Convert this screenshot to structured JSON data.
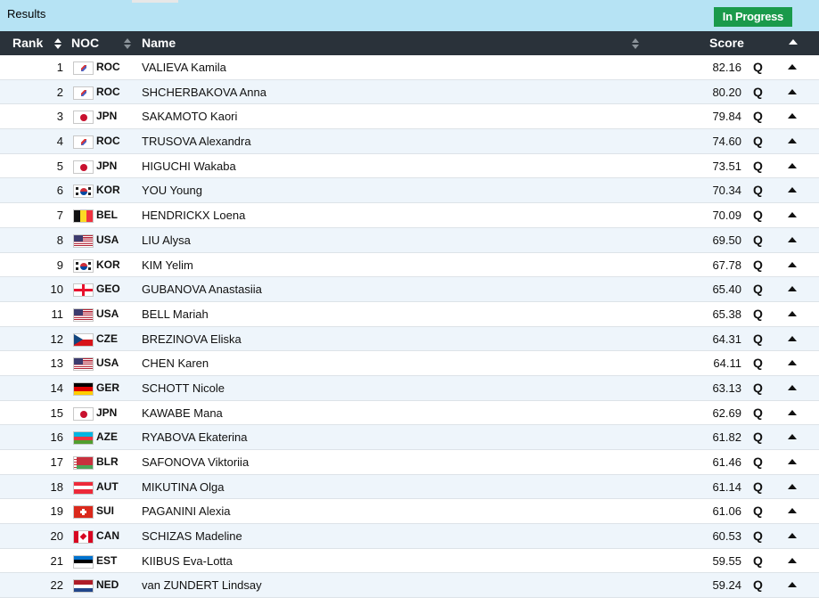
{
  "header": {
    "title": "Results",
    "status": "In Progress"
  },
  "columns": {
    "rank": "Rank",
    "noc": "NOC",
    "name": "Name",
    "score": "Score"
  },
  "qualifier": "Q",
  "rows": [
    {
      "rank": "1",
      "noc": "ROC",
      "name": "VALIEVA Kamila",
      "score": "82.16",
      "flag": "roc"
    },
    {
      "rank": "2",
      "noc": "ROC",
      "name": "SHCHERBAKOVA Anna",
      "score": "80.20",
      "flag": "roc"
    },
    {
      "rank": "3",
      "noc": "JPN",
      "name": "SAKAMOTO Kaori",
      "score": "79.84",
      "flag": "jpn"
    },
    {
      "rank": "4",
      "noc": "ROC",
      "name": "TRUSOVA Alexandra",
      "score": "74.60",
      "flag": "roc"
    },
    {
      "rank": "5",
      "noc": "JPN",
      "name": "HIGUCHI Wakaba",
      "score": "73.51",
      "flag": "jpn"
    },
    {
      "rank": "6",
      "noc": "KOR",
      "name": "YOU Young",
      "score": "70.34",
      "flag": "kor"
    },
    {
      "rank": "7",
      "noc": "BEL",
      "name": "HENDRICKX Loena",
      "score": "70.09",
      "flag": "bel"
    },
    {
      "rank": "8",
      "noc": "USA",
      "name": "LIU Alysa",
      "score": "69.50",
      "flag": "usa"
    },
    {
      "rank": "9",
      "noc": "KOR",
      "name": "KIM Yelim",
      "score": "67.78",
      "flag": "kor"
    },
    {
      "rank": "10",
      "noc": "GEO",
      "name": "GUBANOVA Anastasiia",
      "score": "65.40",
      "flag": "geo"
    },
    {
      "rank": "11",
      "noc": "USA",
      "name": "BELL Mariah",
      "score": "65.38",
      "flag": "usa"
    },
    {
      "rank": "12",
      "noc": "CZE",
      "name": "BREZINOVA Eliska",
      "score": "64.31",
      "flag": "cze"
    },
    {
      "rank": "13",
      "noc": "USA",
      "name": "CHEN Karen",
      "score": "64.11",
      "flag": "usa"
    },
    {
      "rank": "14",
      "noc": "GER",
      "name": "SCHOTT Nicole",
      "score": "63.13",
      "flag": "ger"
    },
    {
      "rank": "15",
      "noc": "JPN",
      "name": "KAWABE Mana",
      "score": "62.69",
      "flag": "jpn"
    },
    {
      "rank": "16",
      "noc": "AZE",
      "name": "RYABOVA Ekaterina",
      "score": "61.82",
      "flag": "aze"
    },
    {
      "rank": "17",
      "noc": "BLR",
      "name": "SAFONOVA Viktoriia",
      "score": "61.46",
      "flag": "blr"
    },
    {
      "rank": "18",
      "noc": "AUT",
      "name": "MIKUTINA Olga",
      "score": "61.14",
      "flag": "aut"
    },
    {
      "rank": "19",
      "noc": "SUI",
      "name": "PAGANINI Alexia",
      "score": "61.06",
      "flag": "sui"
    },
    {
      "rank": "20",
      "noc": "CAN",
      "name": "SCHIZAS Madeline",
      "score": "60.53",
      "flag": "can"
    },
    {
      "rank": "21",
      "noc": "EST",
      "name": "KIIBUS Eva-Lotta",
      "score": "59.55",
      "flag": "est"
    },
    {
      "rank": "22",
      "noc": "NED",
      "name": "van ZUNDERT Lindsay",
      "score": "59.24",
      "flag": "ned"
    }
  ],
  "colors": {
    "header_bg": "#b6e3f4",
    "table_head_bg": "#2a323a",
    "status_green": "#1a9a4b",
    "row_alt": "#eef5fb"
  }
}
